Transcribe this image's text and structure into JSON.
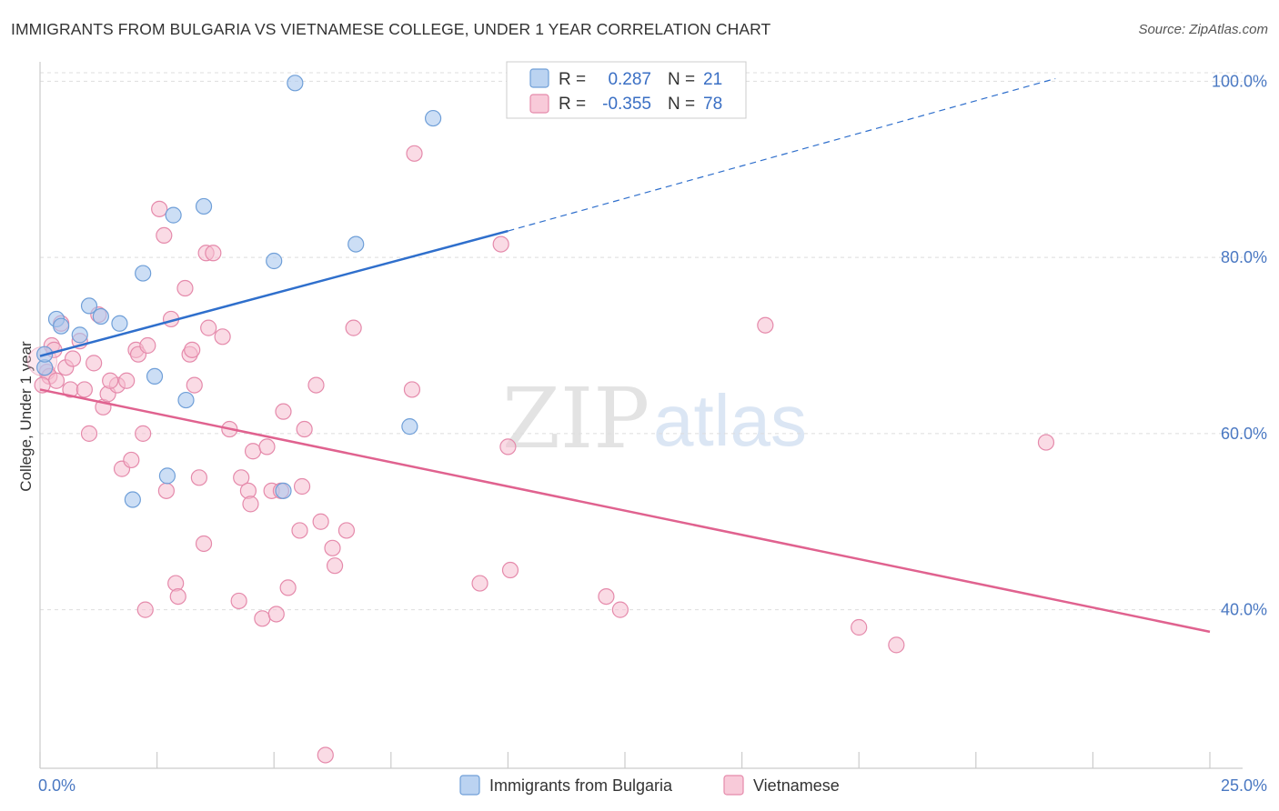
{
  "title": "IMMIGRANTS FROM BULGARIA VS VIETNAMESE COLLEGE, UNDER 1 YEAR CORRELATION CHART",
  "source": "Source: ZipAtlas.com",
  "watermark": {
    "part1": "ZIP",
    "part2": "atlas"
  },
  "colors": {
    "blue_fill": "#aac8ee",
    "blue_stroke": "#6f9fd8",
    "blue_line": "#2f6fcc",
    "pink_fill": "#f6bdd0",
    "pink_stroke": "#e58aab",
    "pink_line": "#e0628f",
    "tick_text": "#4a78c2",
    "grid": "#dddddd"
  },
  "legend": {
    "rows": [
      {
        "r_label": "R =",
        "r_value": "0.287",
        "n_label": "N =",
        "n_value": "21"
      },
      {
        "r_label": "R =",
        "r_value": "-0.355",
        "n_label": "N =",
        "n_value": "78"
      }
    ]
  },
  "chart_data": {
    "type": "scatter",
    "xlabel": "",
    "ylabel": "College, Under 1 year",
    "xlim": [
      0,
      25
    ],
    "ylim": [
      22,
      102
    ],
    "x_tick_labels": [
      "0.0%",
      "25.0%"
    ],
    "y_ticks": [
      40,
      60,
      80,
      100
    ],
    "y_tick_labels": [
      "40.0%",
      "60.0%",
      "80.0%",
      "100.0%"
    ],
    "grid": "horizontal dashed",
    "legend_position": "top-center",
    "series": [
      {
        "name": "Immigrants from Bulgaria",
        "color": "#aac8ee",
        "points": [
          [
            0.1,
            67.5
          ],
          [
            0.1,
            69.0
          ],
          [
            0.35,
            73.0
          ],
          [
            0.45,
            72.2
          ],
          [
            0.85,
            71.2
          ],
          [
            1.05,
            74.5
          ],
          [
            1.3,
            73.3
          ],
          [
            1.7,
            72.5
          ],
          [
            2.2,
            78.2
          ],
          [
            2.45,
            66.5
          ],
          [
            1.98,
            52.5
          ],
          [
            2.72,
            55.2
          ],
          [
            2.85,
            84.8
          ],
          [
            3.12,
            63.8
          ],
          [
            3.5,
            85.8
          ],
          [
            5.0,
            79.6
          ],
          [
            5.2,
            53.5
          ],
          [
            5.45,
            99.8
          ],
          [
            6.75,
            81.5
          ],
          [
            7.9,
            60.8
          ],
          [
            8.4,
            95.8
          ]
        ],
        "trend": {
          "x": [
            0,
            10
          ],
          "y": [
            68.8,
            83.0
          ],
          "dashed_extension_to": [
            21.7,
            100.3
          ]
        }
      },
      {
        "name": "Vietnamese",
        "color": "#f6bdd0",
        "points": [
          [
            0.15,
            67.0
          ],
          [
            0.2,
            66.5
          ],
          [
            0.25,
            70.0
          ],
          [
            0.35,
            66.0
          ],
          [
            0.45,
            72.5
          ],
          [
            0.55,
            67.5
          ],
          [
            0.65,
            65.0
          ],
          [
            0.7,
            68.5
          ],
          [
            0.85,
            70.5
          ],
          [
            0.95,
            65.0
          ],
          [
            1.05,
            60.0
          ],
          [
            1.15,
            68.0
          ],
          [
            1.25,
            73.5
          ],
          [
            1.35,
            63.0
          ],
          [
            1.45,
            64.5
          ],
          [
            1.65,
            65.5
          ],
          [
            1.75,
            56.0
          ],
          [
            1.85,
            66.0
          ],
          [
            1.95,
            57.0
          ],
          [
            2.05,
            69.5
          ],
          [
            2.1,
            69.0
          ],
          [
            2.2,
            60.0
          ],
          [
            2.3,
            70.0
          ],
          [
            2.25,
            40.0
          ],
          [
            2.55,
            85.5
          ],
          [
            2.65,
            82.5
          ],
          [
            2.7,
            53.5
          ],
          [
            2.8,
            73.0
          ],
          [
            2.9,
            43.0
          ],
          [
            2.95,
            41.5
          ],
          [
            3.1,
            76.5
          ],
          [
            3.2,
            69.0
          ],
          [
            3.25,
            69.5
          ],
          [
            3.3,
            65.5
          ],
          [
            3.4,
            55.0
          ],
          [
            3.5,
            47.5
          ],
          [
            3.55,
            80.5
          ],
          [
            3.7,
            80.5
          ],
          [
            3.6,
            72.0
          ],
          [
            3.9,
            71.0
          ],
          [
            4.05,
            60.5
          ],
          [
            4.25,
            41.0
          ],
          [
            4.3,
            55.0
          ],
          [
            4.45,
            53.5
          ],
          [
            4.5,
            52.0
          ],
          [
            4.55,
            58.0
          ],
          [
            4.75,
            39.0
          ],
          [
            4.85,
            58.5
          ],
          [
            4.95,
            53.5
          ],
          [
            5.05,
            39.5
          ],
          [
            5.15,
            53.5
          ],
          [
            5.2,
            62.5
          ],
          [
            5.3,
            42.5
          ],
          [
            5.55,
            49.0
          ],
          [
            5.6,
            54.0
          ],
          [
            5.65,
            60.5
          ],
          [
            5.9,
            65.5
          ],
          [
            6.0,
            50.0
          ],
          [
            6.1,
            23.5
          ],
          [
            6.25,
            47.0
          ],
          [
            6.3,
            45.0
          ],
          [
            6.55,
            49.0
          ],
          [
            6.7,
            72.0
          ],
          [
            7.95,
            65.0
          ],
          [
            8.0,
            91.8
          ],
          [
            9.4,
            43.0
          ],
          [
            9.85,
            81.5
          ],
          [
            10.0,
            58.5
          ],
          [
            10.05,
            44.5
          ],
          [
            12.1,
            41.5
          ],
          [
            12.4,
            40.0
          ],
          [
            15.5,
            72.3
          ],
          [
            17.5,
            38.0
          ],
          [
            18.3,
            36.0
          ],
          [
            21.5,
            59.0
          ],
          [
            0.05,
            65.5
          ],
          [
            0.3,
            69.5
          ],
          [
            1.5,
            66.0
          ]
        ],
        "trend": {
          "x": [
            0,
            25
          ],
          "y": [
            65.0,
            37.5
          ]
        }
      }
    ]
  }
}
